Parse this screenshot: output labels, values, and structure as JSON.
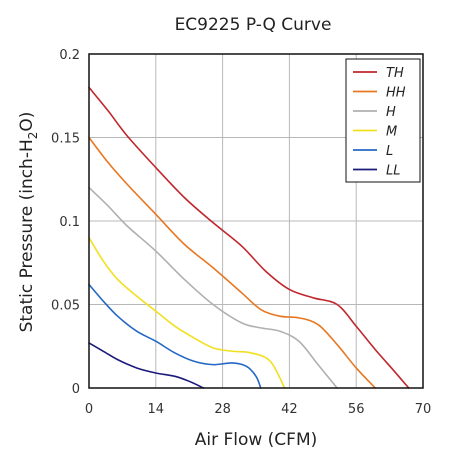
{
  "chart_data": {
    "type": "line",
    "title": "EC9225 P-Q Curve",
    "xlabel": "Air Flow (CFM)",
    "ylabel_main": "Static Pressure (inch-H",
    "ylabel_sub": "2",
    "ylabel_end": "O)",
    "xlim": [
      0,
      70
    ],
    "ylim": [
      0,
      0.2
    ],
    "xticks": [
      0,
      14,
      28,
      42,
      56,
      70
    ],
    "xtick_labels": [
      "0",
      "14",
      "28",
      "42",
      "56",
      "70"
    ],
    "yticks": [
      0,
      0.05,
      0.1,
      0.15,
      0.2
    ],
    "ytick_labels": [
      "0",
      "0.05",
      "0.1",
      "0.15",
      "0.2"
    ],
    "grid": true,
    "legend_position": "top-right",
    "series": [
      {
        "name": "TH",
        "color": "#c0272d",
        "x": [
          0,
          4,
          8,
          14,
          20,
          26,
          32,
          37,
          42,
          47,
          52,
          56,
          60,
          64,
          67
        ],
        "y": [
          0.18,
          0.166,
          0.151,
          0.132,
          0.114,
          0.099,
          0.085,
          0.07,
          0.059,
          0.054,
          0.05,
          0.037,
          0.023,
          0.01,
          0
        ]
      },
      {
        "name": "HH",
        "color": "#e87722",
        "x": [
          0,
          4,
          8,
          14,
          20,
          26,
          32,
          36,
          40,
          44,
          48,
          52,
          56,
          60
        ],
        "y": [
          0.15,
          0.135,
          0.122,
          0.104,
          0.086,
          0.072,
          0.057,
          0.047,
          0.043,
          0.042,
          0.038,
          0.026,
          0.012,
          0
        ]
      },
      {
        "name": "H",
        "color": "#b0b0b0",
        "x": [
          0,
          4,
          8,
          14,
          20,
          26,
          32,
          36,
          40,
          44,
          48,
          52
        ],
        "y": [
          0.12,
          0.109,
          0.097,
          0.082,
          0.065,
          0.05,
          0.039,
          0.036,
          0.034,
          0.028,
          0.014,
          0
        ]
      },
      {
        "name": "M",
        "color": "#f0e020",
        "x": [
          0,
          3,
          6,
          10,
          14,
          18,
          22,
          26,
          30,
          34,
          38,
          41
        ],
        "y": [
          0.09,
          0.076,
          0.065,
          0.055,
          0.046,
          0.037,
          0.03,
          0.024,
          0.022,
          0.021,
          0.016,
          0
        ]
      },
      {
        "name": "L",
        "color": "#2468c4",
        "x": [
          0,
          3,
          6,
          10,
          14,
          18,
          22,
          26,
          30,
          33,
          35,
          36
        ],
        "y": [
          0.062,
          0.052,
          0.043,
          0.034,
          0.028,
          0.021,
          0.016,
          0.014,
          0.015,
          0.013,
          0.007,
          0
        ]
      },
      {
        "name": "LL",
        "color": "#1a1a7a",
        "x": [
          0,
          3,
          6,
          10,
          14,
          18,
          21,
          24
        ],
        "y": [
          0.027,
          0.022,
          0.017,
          0.012,
          0.009,
          0.007,
          0.004,
          0
        ]
      }
    ]
  }
}
